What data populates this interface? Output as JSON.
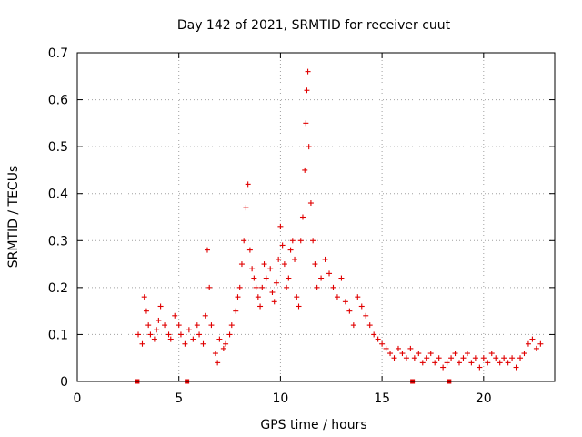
{
  "chart_data": {
    "type": "scatter",
    "title": "Day 142 of 2021, SRMTID for receiver cuut",
    "xlabel": "GPS time / hours",
    "ylabel": "SRMTID / TECUs",
    "xlim": [
      0,
      23.5
    ],
    "ylim": [
      0,
      0.7
    ],
    "xticks": [
      0,
      5,
      10,
      15,
      20
    ],
    "yticks": [
      0,
      0.1,
      0.2,
      0.3,
      0.4,
      0.5,
      0.6,
      0.7
    ],
    "grid": true,
    "color": "#e00000",
    "marker": "plus",
    "zero_markers_x": [
      2.95,
      5.4,
      16.5,
      18.3
    ],
    "series": [
      {
        "name": "SRMTID",
        "points": [
          [
            3.0,
            0.1
          ],
          [
            3.2,
            0.08
          ],
          [
            3.3,
            0.18
          ],
          [
            3.4,
            0.15
          ],
          [
            3.5,
            0.12
          ],
          [
            3.6,
            0.1
          ],
          [
            3.8,
            0.09
          ],
          [
            3.9,
            0.11
          ],
          [
            4.0,
            0.13
          ],
          [
            4.1,
            0.16
          ],
          [
            4.3,
            0.12
          ],
          [
            4.5,
            0.1
          ],
          [
            4.6,
            0.09
          ],
          [
            4.8,
            0.14
          ],
          [
            5.0,
            0.12
          ],
          [
            5.1,
            0.1
          ],
          [
            5.3,
            0.08
          ],
          [
            5.5,
            0.11
          ],
          [
            5.7,
            0.09
          ],
          [
            5.9,
            0.12
          ],
          [
            6.0,
            0.1
          ],
          [
            6.2,
            0.08
          ],
          [
            6.3,
            0.14
          ],
          [
            6.4,
            0.28
          ],
          [
            6.5,
            0.2
          ],
          [
            6.6,
            0.12
          ],
          [
            6.8,
            0.06
          ],
          [
            6.9,
            0.04
          ],
          [
            7.0,
            0.09
          ],
          [
            7.2,
            0.07
          ],
          [
            7.3,
            0.08
          ],
          [
            7.5,
            0.1
          ],
          [
            7.6,
            0.12
          ],
          [
            7.8,
            0.15
          ],
          [
            7.9,
            0.18
          ],
          [
            8.0,
            0.2
          ],
          [
            8.1,
            0.25
          ],
          [
            8.2,
            0.3
          ],
          [
            8.3,
            0.37
          ],
          [
            8.4,
            0.42
          ],
          [
            8.5,
            0.28
          ],
          [
            8.6,
            0.24
          ],
          [
            8.7,
            0.22
          ],
          [
            8.8,
            0.2
          ],
          [
            8.9,
            0.18
          ],
          [
            9.0,
            0.16
          ],
          [
            9.1,
            0.2
          ],
          [
            9.2,
            0.25
          ],
          [
            9.3,
            0.22
          ],
          [
            9.5,
            0.24
          ],
          [
            9.6,
            0.19
          ],
          [
            9.7,
            0.17
          ],
          [
            9.8,
            0.21
          ],
          [
            9.9,
            0.26
          ],
          [
            10.0,
            0.33
          ],
          [
            10.1,
            0.29
          ],
          [
            10.2,
            0.25
          ],
          [
            10.3,
            0.2
          ],
          [
            10.4,
            0.22
          ],
          [
            10.5,
            0.28
          ],
          [
            10.6,
            0.3
          ],
          [
            10.7,
            0.26
          ],
          [
            10.8,
            0.18
          ],
          [
            10.9,
            0.16
          ],
          [
            11.0,
            0.3
          ],
          [
            11.1,
            0.35
          ],
          [
            11.2,
            0.45
          ],
          [
            11.25,
            0.55
          ],
          [
            11.3,
            0.62
          ],
          [
            11.35,
            0.66
          ],
          [
            11.4,
            0.5
          ],
          [
            11.5,
            0.38
          ],
          [
            11.6,
            0.3
          ],
          [
            11.7,
            0.25
          ],
          [
            11.8,
            0.2
          ],
          [
            12.0,
            0.22
          ],
          [
            12.2,
            0.26
          ],
          [
            12.4,
            0.23
          ],
          [
            12.6,
            0.2
          ],
          [
            12.8,
            0.18
          ],
          [
            13.0,
            0.22
          ],
          [
            13.2,
            0.17
          ],
          [
            13.4,
            0.15
          ],
          [
            13.6,
            0.12
          ],
          [
            13.8,
            0.18
          ],
          [
            14.0,
            0.16
          ],
          [
            14.2,
            0.14
          ],
          [
            14.4,
            0.12
          ],
          [
            14.6,
            0.1
          ],
          [
            14.8,
            0.09
          ],
          [
            15.0,
            0.08
          ],
          [
            15.2,
            0.07
          ],
          [
            15.4,
            0.06
          ],
          [
            15.6,
            0.05
          ],
          [
            15.8,
            0.07
          ],
          [
            16.0,
            0.06
          ],
          [
            16.2,
            0.05
          ],
          [
            16.4,
            0.07
          ],
          [
            16.6,
            0.05
          ],
          [
            16.8,
            0.06
          ],
          [
            17.0,
            0.04
          ],
          [
            17.2,
            0.05
          ],
          [
            17.4,
            0.06
          ],
          [
            17.6,
            0.04
          ],
          [
            17.8,
            0.05
          ],
          [
            18.0,
            0.03
          ],
          [
            18.2,
            0.04
          ],
          [
            18.4,
            0.05
          ],
          [
            18.6,
            0.06
          ],
          [
            18.8,
            0.04
          ],
          [
            19.0,
            0.05
          ],
          [
            19.2,
            0.06
          ],
          [
            19.4,
            0.04
          ],
          [
            19.6,
            0.05
          ],
          [
            19.8,
            0.03
          ],
          [
            20.0,
            0.05
          ],
          [
            20.2,
            0.04
          ],
          [
            20.4,
            0.06
          ],
          [
            20.6,
            0.05
          ],
          [
            20.8,
            0.04
          ],
          [
            21.0,
            0.05
          ],
          [
            21.2,
            0.04
          ],
          [
            21.4,
            0.05
          ],
          [
            21.6,
            0.03
          ],
          [
            21.8,
            0.05
          ],
          [
            22.0,
            0.06
          ],
          [
            22.2,
            0.08
          ],
          [
            22.4,
            0.09
          ],
          [
            22.6,
            0.07
          ],
          [
            22.8,
            0.08
          ]
        ]
      }
    ]
  }
}
